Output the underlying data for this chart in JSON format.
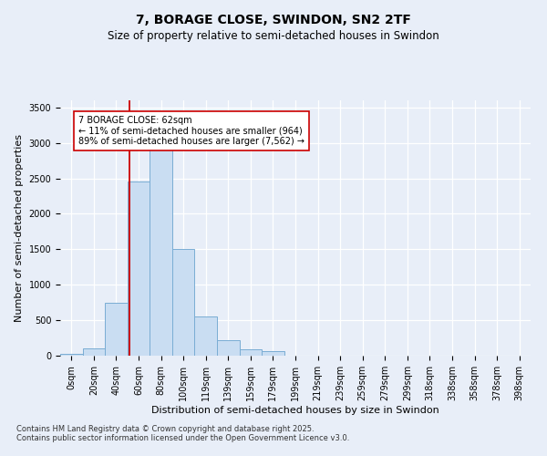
{
  "title": "7, BORAGE CLOSE, SWINDON, SN2 2TF",
  "subtitle": "Size of property relative to semi-detached houses in Swindon",
  "xlabel": "Distribution of semi-detached houses by size in Swindon",
  "ylabel": "Number of semi-detached properties",
  "categories": [
    "0sqm",
    "20sqm",
    "40sqm",
    "60sqm",
    "80sqm",
    "100sqm",
    "119sqm",
    "139sqm",
    "159sqm",
    "179sqm",
    "199sqm",
    "219sqm",
    "239sqm",
    "259sqm",
    "279sqm",
    "299sqm",
    "318sqm",
    "338sqm",
    "358sqm",
    "378sqm",
    "398sqm"
  ],
  "bar_values": [
    30,
    100,
    750,
    2450,
    2900,
    1500,
    550,
    220,
    90,
    60,
    0,
    0,
    0,
    0,
    0,
    0,
    0,
    0,
    0,
    0,
    0
  ],
  "bar_color": "#c9ddf2",
  "bar_edgecolor": "#7aadd4",
  "vline_color": "#cc0000",
  "annotation_text": "7 BORAGE CLOSE: 62sqm\n← 11% of semi-detached houses are smaller (964)\n89% of semi-detached houses are larger (7,562) →",
  "ylim": [
    0,
    3600
  ],
  "yticks": [
    0,
    500,
    1000,
    1500,
    2000,
    2500,
    3000,
    3500
  ],
  "footer": "Contains HM Land Registry data © Crown copyright and database right 2025.\nContains public sector information licensed under the Open Government Licence v3.0.",
  "bg_color": "#e8eef8",
  "plot_bg_color": "#e8eef8",
  "grid_color": "#ffffff",
  "title_fontsize": 10,
  "subtitle_fontsize": 8.5,
  "tick_fontsize": 7,
  "label_fontsize": 8,
  "footer_fontsize": 6
}
